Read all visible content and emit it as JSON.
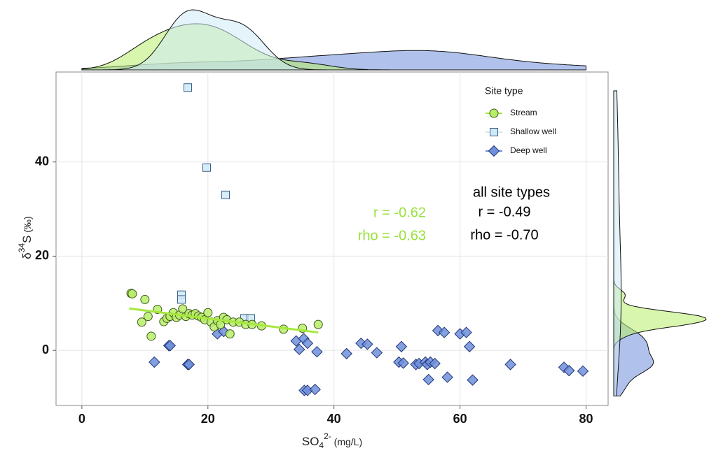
{
  "chart_data": {
    "type": "scatter",
    "x_label": {
      "base": "SO",
      "sub": "4",
      "sup": "2-",
      "unit": " (mg/L)"
    },
    "y_label": {
      "base": "δ",
      "sup": "34",
      "rest": "S",
      "unit": " (‰)"
    },
    "xlim": [
      -4.1,
      83.5
    ],
    "ylim": [
      -11.7,
      59.1
    ],
    "xticks": [
      0,
      20,
      40,
      60,
      80
    ],
    "yticks": [
      0,
      20,
      40
    ],
    "grid": true,
    "legend": {
      "title": "Site type",
      "position": "upper right"
    },
    "series": [
      {
        "name": "Stream",
        "marker": "circle",
        "color": "#b8ee6a",
        "edge": "#3f5a1a",
        "line_color": "#a6e83c",
        "x": [
          7.8,
          8,
          9.5,
          10,
          10.5,
          11,
          12,
          13,
          13.5,
          14,
          14.5,
          15,
          15.5,
          16,
          16.5,
          17,
          17.5,
          18,
          18.5,
          19,
          19.5,
          20,
          20.5,
          21,
          21.5,
          22,
          22.5,
          23,
          23.5,
          24,
          25,
          26,
          27,
          28.5,
          32,
          35,
          37.5
        ],
        "values": [
          12.1,
          12,
          6,
          10.8,
          7.2,
          3,
          8.7,
          6.1,
          6.8,
          7.2,
          8,
          7,
          7.5,
          8.8,
          7.2,
          7.8,
          7.5,
          7.8,
          7.3,
          7,
          6.5,
          8,
          6,
          5,
          6.3,
          5.5,
          7,
          6.5,
          3.5,
          6,
          6,
          5.5,
          5.5,
          5.2,
          4.5,
          4.7,
          5.5
        ],
        "fit": {
          "x": [
            7.5,
            37.5
          ],
          "values": [
            8.9,
            3.8
          ]
        }
      },
      {
        "name": "Shallow well",
        "marker": "square",
        "color": "#cfe9f5",
        "edge": "#3b5f8a",
        "x": [
          16.8,
          19.8,
          22.8,
          15.8,
          15.8,
          25.8,
          26.8
        ],
        "values": [
          55.8,
          38.8,
          33,
          11.8,
          10.8,
          6.8,
          6.8
        ]
      },
      {
        "name": "Deep well",
        "marker": "diamond",
        "color": "#6f8fdc",
        "edge": "#1f3578",
        "x": [
          11.5,
          13.8,
          14,
          16.8,
          17,
          21.5,
          22.5,
          34,
          34.5,
          35.2,
          35.8,
          35.3,
          35.8,
          37,
          37.3,
          42,
          44.3,
          45.3,
          46.8,
          50.3,
          50.7,
          51,
          53,
          53.5,
          54.5,
          54.8,
          55.3,
          56,
          55,
          56.5,
          57.5,
          58,
          60,
          61,
          61.5,
          62,
          68,
          76.5,
          77.3,
          79.5
        ],
        "values": [
          -2.5,
          1,
          1,
          -3,
          -3,
          3.5,
          4,
          2,
          0.2,
          2.5,
          1.5,
          -8.5,
          -8.5,
          -8.3,
          -0.3,
          -0.7,
          1.5,
          1.3,
          -0.5,
          -2.5,
          0.8,
          -2.7,
          -3,
          -2.8,
          -2.5,
          -3,
          -2.5,
          -2.8,
          -6.2,
          4.2,
          3.8,
          -5.7,
          3.5,
          3.8,
          0.8,
          -6.3,
          -3,
          -3.6,
          -4.3,
          -4.4
        ]
      }
    ],
    "annotations": [
      {
        "text": "r = -0.62",
        "color": "#99e23a"
      },
      {
        "text": "rho = -0.63",
        "color": "#99e23a"
      },
      {
        "text": "all site types",
        "color": "#000000"
      },
      {
        "text": "r = -0.49",
        "color": "#000000"
      },
      {
        "text": "rho = -0.70",
        "color": "#000000"
      }
    ]
  }
}
